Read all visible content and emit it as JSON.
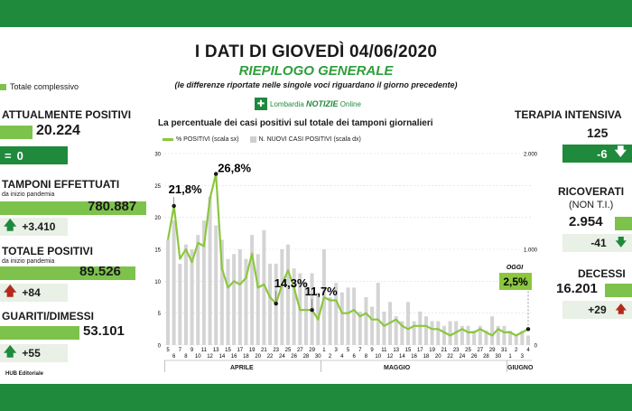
{
  "header": {
    "title": "I DATI DI GIOVEDÌ 04/06/2020",
    "subtitle": "RIEPILOGO GENERALE",
    "note": "(le differenze riportate nelle singole voci riguardano il giorno precedente)",
    "logo_text": "Lombardia",
    "logo_brand": "NOTIZIE",
    "logo_suffix": "Online"
  },
  "left_legend": "Totale complessivo",
  "left": {
    "attualmente_positivi": {
      "label": "ATTUALMENTE POSITIVI",
      "value": "20.224",
      "delta": "0",
      "delta_symbol": "="
    },
    "tamponi": {
      "label": "TAMPONI EFFETTUATI",
      "sublabel": "da inizio pandemia",
      "value": "780.887",
      "delta": "+3.410"
    },
    "totale_positivi": {
      "label": "TOTALE POSITIVI",
      "sublabel": "da inizio pandemia",
      "value": "89.526",
      "delta": "+84"
    },
    "guariti": {
      "label": "GUARITI/DIMESSI",
      "value": "53.101",
      "delta": "+55"
    }
  },
  "right": {
    "terapia": {
      "label": "TERAPIA INTENSIVA",
      "value": "125",
      "delta": "-6"
    },
    "ricoverati": {
      "label": "RICOVERATI",
      "sublabel": "(NON T.I.)",
      "value": "2.954",
      "delta": "-41"
    },
    "decessi": {
      "label": "DECESSI",
      "value": "16.201",
      "delta": "+29"
    }
  },
  "footer": {
    "credit": "HUB Editoriale"
  },
  "chart": {
    "title": "La percentuale dei casi positivi sul totale dei tamponi giornalieri",
    "legend_line": "% POSITIVI (scala sx)",
    "legend_bars": "N. NUOVI CASI POSITIVI (scala dx)",
    "months": [
      "APRILE",
      "MAGGIO",
      "GIUGNO"
    ],
    "oggi_label": "OGGI"
  },
  "chart_data": {
    "type": "line",
    "x": [
      "5",
      "6",
      "7",
      "8",
      "9",
      "10",
      "11",
      "12",
      "13",
      "14",
      "15",
      "16",
      "17",
      "18",
      "19",
      "20",
      "21",
      "22",
      "23",
      "24",
      "25",
      "26",
      "27",
      "28",
      "29",
      "30",
      "1",
      "2",
      "3",
      "4",
      "5",
      "6",
      "7",
      "8",
      "9",
      "10",
      "11",
      "12",
      "13",
      "14",
      "15",
      "16",
      "17",
      "18",
      "19",
      "20",
      "21",
      "22",
      "23",
      "24",
      "25",
      "26",
      "27",
      "28",
      "29",
      "30",
      "31",
      "1",
      "2",
      "3",
      "4"
    ],
    "series": [
      {
        "name": "% POSITIVI (scala sx)",
        "axis": "left",
        "values": [
          16.5,
          21.8,
          13.5,
          15.0,
          13.0,
          16.0,
          15.5,
          23.0,
          26.8,
          12.0,
          9.0,
          10.0,
          9.5,
          10.5,
          14.3,
          9.0,
          9.5,
          7.5,
          6.5,
          9.5,
          11.7,
          9.0,
          5.5,
          5.5,
          5.5,
          4.0,
          7.5,
          7.0,
          7.0,
          5.0,
          5.0,
          5.5,
          4.5,
          5.0,
          4.0,
          4.0,
          3.0,
          3.5,
          4.0,
          3.0,
          2.5,
          3.0,
          3.0,
          3.0,
          2.5,
          2.5,
          2.0,
          1.5,
          2.0,
          2.5,
          2.0,
          2.0,
          2.5,
          2.0,
          1.5,
          2.5,
          2.0,
          2.0,
          1.5,
          2.0,
          2.5
        ]
      },
      {
        "name": "N. NUOVI CASI POSITIVI (scala dx)",
        "axis": "right",
        "values": [
          1100,
          1300,
          850,
          1050,
          1000,
          1150,
          1300,
          1550,
          1250,
          1100,
          900,
          950,
          1000,
          900,
          1150,
          950,
          1200,
          850,
          850,
          1000,
          1050,
          800,
          750,
          650,
          750,
          550,
          1000,
          500,
          650,
          550,
          600,
          600,
          350,
          500,
          400,
          650,
          350,
          450,
          300,
          250,
          450,
          250,
          350,
          300,
          250,
          250,
          200,
          250,
          250,
          200,
          200,
          150,
          200,
          150,
          300,
          200,
          200,
          150,
          100,
          150,
          100
        ]
      }
    ],
    "annotations": [
      "21,8%",
      "26,8%",
      "14,3%",
      "11,7%",
      "2,5%"
    ],
    "yleft_ticks": [
      "0",
      "5",
      "10",
      "15",
      "20",
      "25",
      "30"
    ],
    "yright_ticks": [
      "0",
      "1.000",
      "2.000"
    ],
    "ylim_left": [
      0,
      30
    ],
    "ylim_right": [
      0,
      2000
    ],
    "colors": {
      "line": "#8cc63f",
      "bars": "#d4d4d4",
      "accent": "#1f8a3c"
    }
  }
}
